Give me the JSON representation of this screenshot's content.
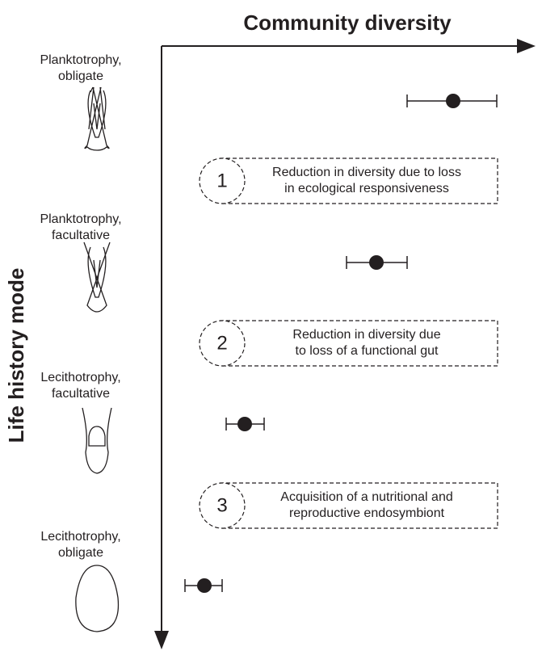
{
  "title": "Community diversity",
  "y_axis_label": "Life history mode",
  "modes": [
    {
      "label": [
        "Planktotrophy,",
        "obligate"
      ]
    },
    {
      "label": [
        "Planktotrophy,",
        "facultative"
      ]
    },
    {
      "label": [
        "Lecithotrophy,",
        "facultative"
      ]
    },
    {
      "label": [
        "Lecithotrophy,",
        "obligate"
      ]
    }
  ],
  "transitions": [
    {
      "number": "1",
      "text": [
        "Reduction in diversity due to loss",
        "in ecological responsiveness"
      ]
    },
    {
      "number": "2",
      "text": [
        "Reduction in diversity due",
        "to loss of a functional gut"
      ]
    },
    {
      "number": "3",
      "text": [
        "Acquisition of a nutritional and",
        "reproductive endosymbiont"
      ]
    }
  ]
}
